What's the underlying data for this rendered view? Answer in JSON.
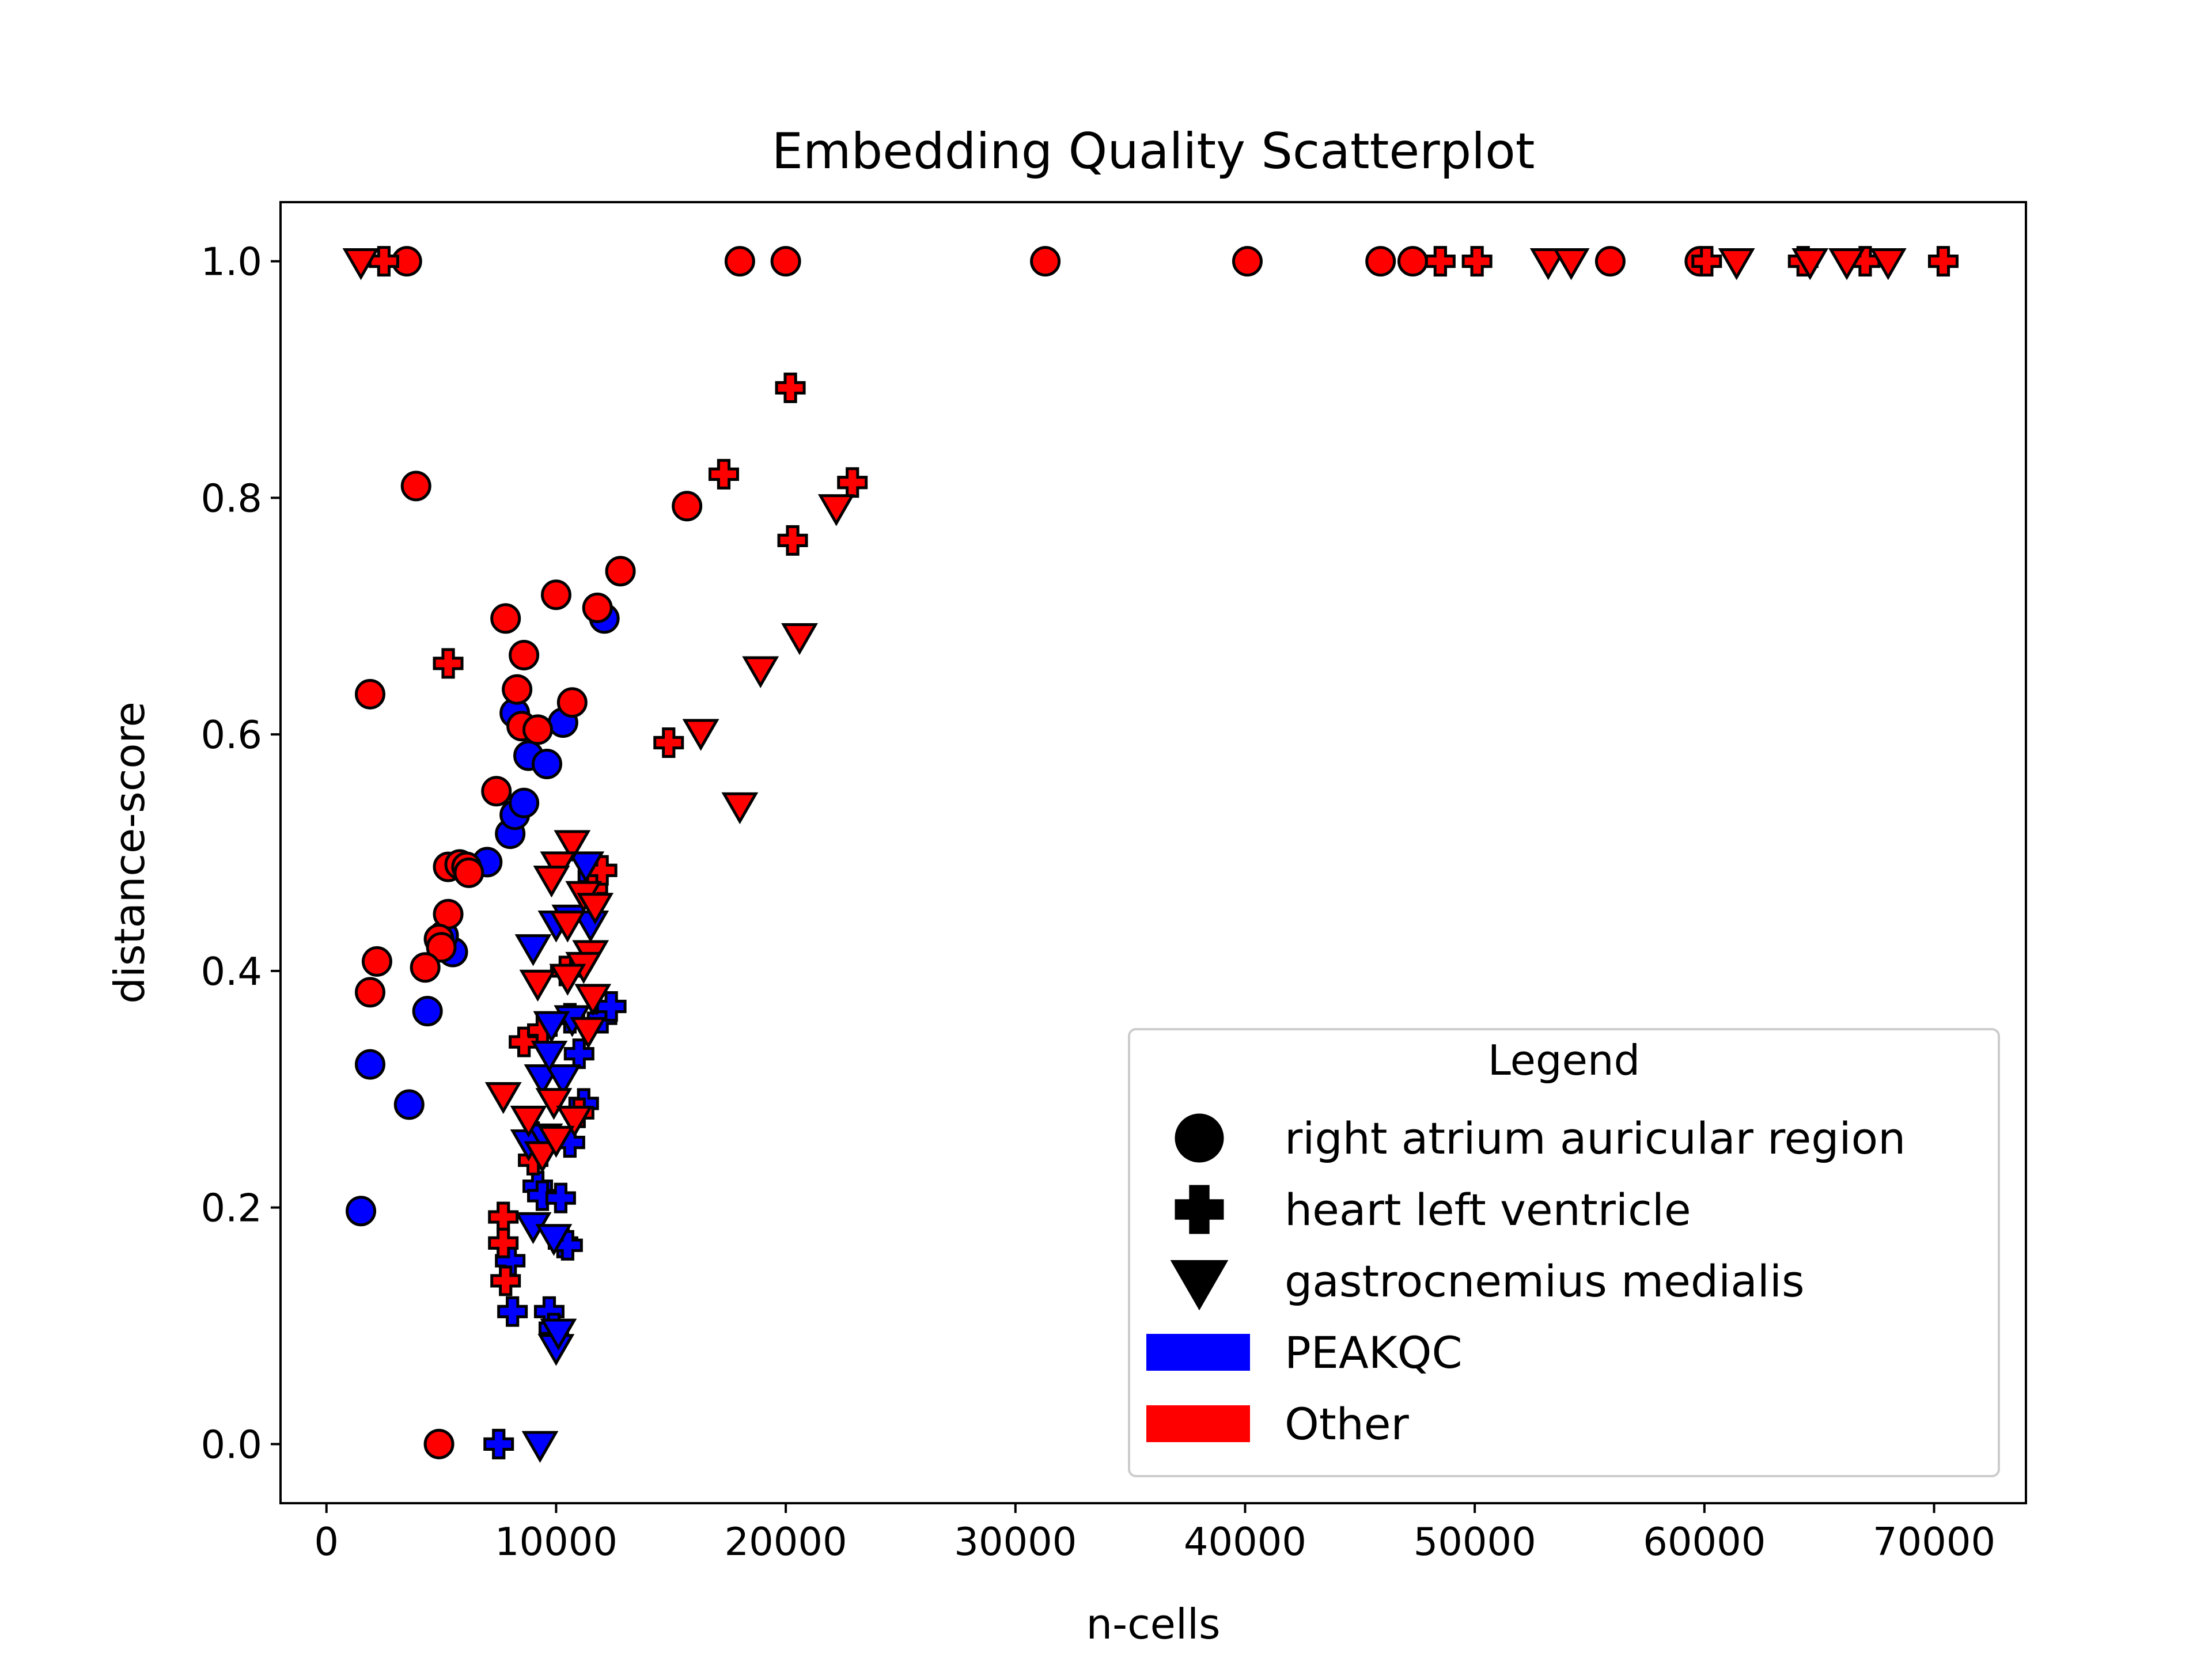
{
  "chart_data": {
    "type": "scatter",
    "title": "Embedding Quality Scatterplot",
    "xlabel": "n-cells",
    "ylabel": "distance-score",
    "xlim": [
      -2000,
      74000
    ],
    "ylim": [
      -0.05,
      1.05
    ],
    "xticks": [
      0,
      10000,
      20000,
      30000,
      40000,
      50000,
      60000,
      70000
    ],
    "xtick_labels": [
      "0",
      "10000",
      "20000",
      "30000",
      "40000",
      "50000",
      "60000",
      "70000"
    ],
    "yticks": [
      0.0,
      0.2,
      0.4,
      0.6,
      0.8,
      1.0
    ],
    "ytick_labels": [
      "0.0",
      "0.2",
      "0.4",
      "0.6",
      "0.8",
      "1.0"
    ],
    "grid": false,
    "legend": {
      "title": "Legend",
      "placement": "lower-right",
      "shape_entries": [
        {
          "label": "right atrium auricular region",
          "marker": "circle"
        },
        {
          "label": "heart left ventricle",
          "marker": "plus"
        },
        {
          "label": "gastrocnemius medialis",
          "marker": "triangle-down"
        }
      ],
      "color_entries": [
        {
          "label": "PEAKQC",
          "color": "#0000ff"
        },
        {
          "label": "Other",
          "color": "#ff0000"
        }
      ]
    },
    "colors": {
      "PEAKQC": "#0000ff",
      "Other": "#ff0000",
      "edge": "#000000"
    },
    "series": [
      {
        "group": "PEAKQC",
        "marker": "circle",
        "points": [
          [
            1500,
            0.197
          ],
          [
            1900,
            0.321
          ],
          [
            3600,
            0.287
          ],
          [
            4400,
            0.366
          ],
          [
            5500,
            0.416
          ],
          [
            7000,
            0.492
          ],
          [
            8000,
            0.516
          ],
          [
            8200,
            0.532
          ],
          [
            8600,
            0.542
          ],
          [
            8200,
            0.618
          ],
          [
            8800,
            0.582
          ],
          [
            9600,
            0.575
          ],
          [
            10300,
            0.61
          ],
          [
            12100,
            0.698
          ],
          [
            5100,
            0.43
          ]
        ]
      },
      {
        "group": "Other",
        "marker": "circle",
        "points": [
          [
            3500,
            1.0
          ],
          [
            18000,
            1.0
          ],
          [
            20000,
            1.0
          ],
          [
            31300,
            1.0
          ],
          [
            40100,
            1.0
          ],
          [
            45900,
            1.0
          ],
          [
            47300,
            1.0
          ],
          [
            55900,
            1.0
          ],
          [
            59800,
            1.0
          ],
          [
            3900,
            0.81
          ],
          [
            1900,
            0.634
          ],
          [
            15700,
            0.793
          ],
          [
            12800,
            0.738
          ],
          [
            10000,
            0.718
          ],
          [
            11800,
            0.707
          ],
          [
            7800,
            0.698
          ],
          [
            8600,
            0.667
          ],
          [
            8300,
            0.638
          ],
          [
            10700,
            0.627
          ],
          [
            8500,
            0.607
          ],
          [
            9200,
            0.604
          ],
          [
            7400,
            0.552
          ],
          [
            5300,
            0.488
          ],
          [
            5800,
            0.49
          ],
          [
            6100,
            0.488
          ],
          [
            6200,
            0.483
          ],
          [
            5300,
            0.448
          ],
          [
            4900,
            0.427
          ],
          [
            5000,
            0.42
          ],
          [
            4300,
            0.403
          ],
          [
            2200,
            0.408
          ],
          [
            1900,
            0.382
          ],
          [
            4900,
            0.0
          ]
        ]
      },
      {
        "group": "PEAKQC",
        "marker": "plus",
        "points": [
          [
            7500,
            0.0
          ],
          [
            8000,
            0.155
          ],
          [
            8100,
            0.112
          ],
          [
            9700,
            0.112
          ],
          [
            9900,
            0.098
          ],
          [
            10300,
            0.17
          ],
          [
            10500,
            0.168
          ],
          [
            9200,
            0.218
          ],
          [
            9400,
            0.21
          ],
          [
            10200,
            0.208
          ],
          [
            9000,
            0.26
          ],
          [
            9500,
            0.258
          ],
          [
            10600,
            0.255
          ],
          [
            11200,
            0.288
          ],
          [
            10600,
            0.36
          ],
          [
            11000,
            0.33
          ],
          [
            12000,
            0.36
          ],
          [
            12400,
            0.37
          ],
          [
            11600,
            0.48
          ]
        ]
      },
      {
        "group": "Other",
        "marker": "plus",
        "points": [
          [
            2500,
            1.0
          ],
          [
            48500,
            1.0
          ],
          [
            50100,
            1.0
          ],
          [
            60100,
            1.0
          ],
          [
            64300,
            1.0
          ],
          [
            67000,
            1.0
          ],
          [
            70400,
            1.0
          ],
          [
            20200,
            0.893
          ],
          [
            17300,
            0.82
          ],
          [
            22900,
            0.813
          ],
          [
            20300,
            0.764
          ],
          [
            5300,
            0.66
          ],
          [
            14900,
            0.593
          ],
          [
            7700,
            0.192
          ],
          [
            7700,
            0.17
          ],
          [
            7800,
            0.138
          ],
          [
            8600,
            0.34
          ],
          [
            9400,
            0.35
          ],
          [
            10400,
            0.4
          ],
          [
            11600,
            0.47
          ],
          [
            12000,
            0.485
          ],
          [
            11000,
            0.28
          ],
          [
            9000,
            0.24
          ]
        ]
      },
      {
        "group": "PEAKQC",
        "marker": "triangle-down",
        "points": [
          [
            9300,
            0.0
          ],
          [
            10000,
            0.082
          ],
          [
            10100,
            0.095
          ],
          [
            8800,
            0.255
          ],
          [
            9500,
            0.26
          ],
          [
            9000,
            0.185
          ],
          [
            9900,
            0.175
          ],
          [
            9400,
            0.31
          ],
          [
            10300,
            0.31
          ],
          [
            9700,
            0.33
          ],
          [
            10700,
            0.36
          ],
          [
            9000,
            0.42
          ],
          [
            10000,
            0.44
          ],
          [
            10600,
            0.445
          ],
          [
            11500,
            0.44
          ],
          [
            11300,
            0.49
          ],
          [
            9800,
            0.355
          ]
        ]
      },
      {
        "group": "Other",
        "marker": "triangle-down",
        "points": [
          [
            1500,
            1.0
          ],
          [
            53200,
            1.0
          ],
          [
            54200,
            1.0
          ],
          [
            61400,
            1.0
          ],
          [
            64600,
            1.0
          ],
          [
            66200,
            1.0
          ],
          [
            68000,
            1.0
          ],
          [
            22200,
            0.792
          ],
          [
            20600,
            0.683
          ],
          [
            18900,
            0.655
          ],
          [
            16300,
            0.602
          ],
          [
            18000,
            0.54
          ],
          [
            10700,
            0.508
          ],
          [
            10100,
            0.49
          ],
          [
            9800,
            0.478
          ],
          [
            11200,
            0.465
          ],
          [
            11700,
            0.455
          ],
          [
            10500,
            0.44
          ],
          [
            11500,
            0.415
          ],
          [
            11200,
            0.405
          ],
          [
            9200,
            0.39
          ],
          [
            10500,
            0.395
          ],
          [
            11600,
            0.378
          ],
          [
            7700,
            0.295
          ],
          [
            9900,
            0.29
          ],
          [
            10800,
            0.275
          ],
          [
            8800,
            0.275
          ],
          [
            9400,
            0.245
          ],
          [
            10000,
            0.258
          ],
          [
            11400,
            0.35
          ]
        ]
      }
    ]
  }
}
